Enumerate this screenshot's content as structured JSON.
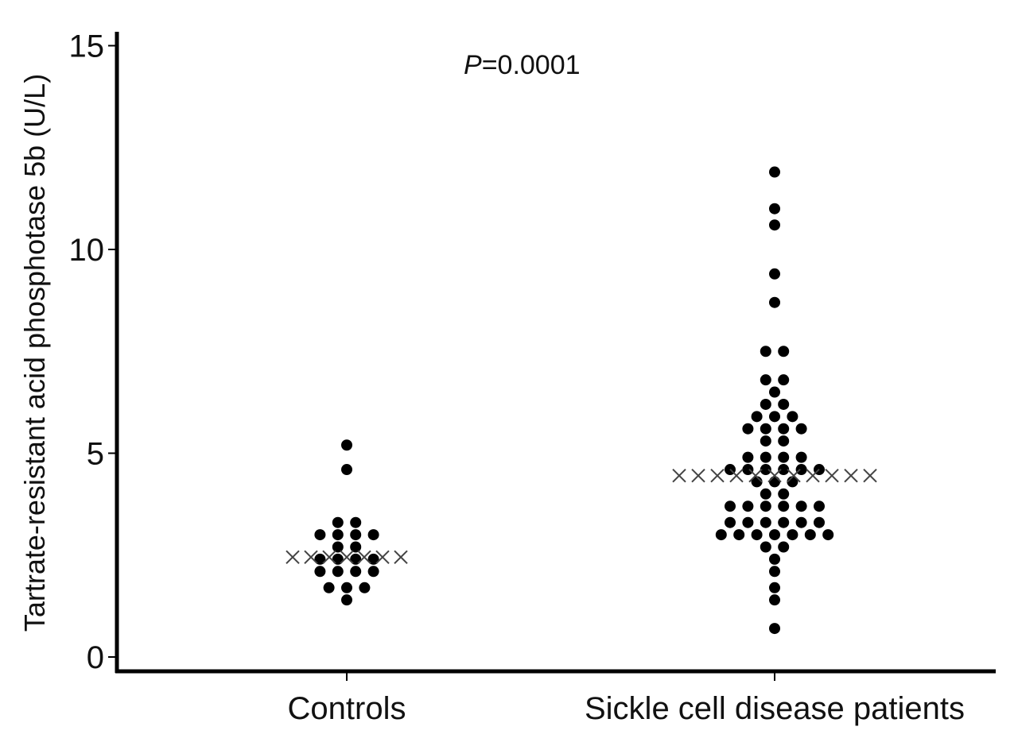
{
  "chart_data": {
    "type": "scatter",
    "title": "",
    "xlabel": "",
    "ylabel": "Tartrate-resistant acid phosphotase 5b (U/L)",
    "ylim": [
      0,
      15
    ],
    "yticks": [
      0,
      5,
      10,
      15
    ],
    "grid": false,
    "categories": [
      "Controls",
      "Sickle cell disease patients"
    ],
    "annotation": {
      "italic": "P",
      "rest": "=0.0001"
    },
    "series": [
      {
        "values": [
          5.2,
          4.6,
          3.3,
          3.3,
          3.0,
          3.0,
          3.0,
          3.0,
          2.7,
          2.7,
          2.4,
          2.4,
          2.4,
          2.4,
          2.1,
          2.1,
          2.1,
          2.1,
          1.7,
          1.7,
          1.7,
          1.4
        ],
        "median": 2.45
      },
      {
        "values": [
          11.9,
          11.0,
          10.6,
          9.4,
          8.7,
          7.5,
          7.5,
          6.8,
          6.8,
          6.5,
          6.2,
          6.2,
          5.9,
          5.9,
          5.9,
          5.6,
          5.6,
          5.6,
          5.6,
          5.3,
          5.3,
          4.9,
          4.9,
          4.9,
          4.9,
          4.6,
          4.6,
          4.6,
          4.6,
          4.6,
          4.6,
          4.3,
          4.3,
          4.3,
          4.0,
          4.0,
          3.7,
          3.7,
          3.7,
          3.7,
          3.7,
          3.7,
          3.3,
          3.3,
          3.3,
          3.3,
          3.3,
          3.3,
          3.0,
          3.0,
          3.0,
          3.0,
          3.0,
          3.0,
          3.0,
          2.7,
          2.7,
          2.4,
          2.1,
          1.7,
          1.4,
          0.7
        ],
        "median": 4.45
      }
    ]
  }
}
